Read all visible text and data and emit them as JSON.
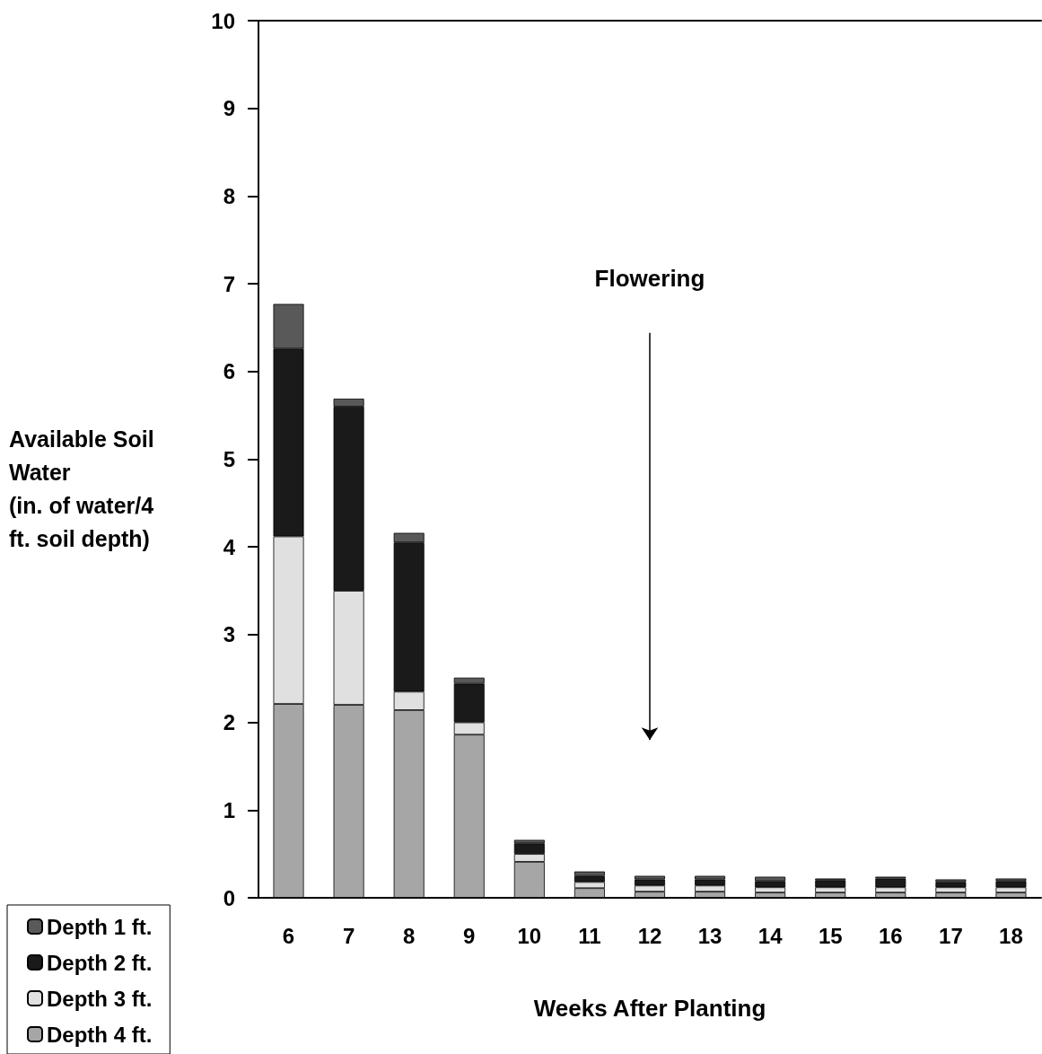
{
  "chart_data": {
    "type": "bar",
    "stacked": true,
    "xlabel": "Weeks After Planting",
    "ylabel": "Available Soil Water (in. of water/4 ft. soil depth)",
    "categories": [
      "6",
      "7",
      "8",
      "9",
      "10",
      "11",
      "12",
      "13",
      "14",
      "15",
      "16",
      "17",
      "18"
    ],
    "series": [
      {
        "name": "Depth 4 ft.",
        "color": "#a6a6a6",
        "values": [
          2.21,
          2.2,
          2.14,
          1.86,
          0.41,
          0.11,
          0.07,
          0.07,
          0.06,
          0.06,
          0.06,
          0.06,
          0.06
        ]
      },
      {
        "name": "Depth 3 ft.",
        "color": "#e0e0e0",
        "values": [
          1.91,
          1.3,
          0.21,
          0.14,
          0.09,
          0.07,
          0.07,
          0.07,
          0.06,
          0.06,
          0.06,
          0.06,
          0.06
        ]
      },
      {
        "name": "Depth 2 ft.",
        "color": "#1a1a1a",
        "values": [
          2.14,
          2.1,
          1.7,
          0.44,
          0.12,
          0.07,
          0.07,
          0.07,
          0.07,
          0.08,
          0.1,
          0.06,
          0.07
        ]
      },
      {
        "name": "Depth 1 ft.",
        "color": "#595959",
        "values": [
          0.51,
          0.09,
          0.11,
          0.07,
          0.04,
          0.05,
          0.04,
          0.04,
          0.05,
          0.02,
          0.02,
          0.03,
          0.03
        ]
      }
    ],
    "ylim": [
      0,
      10
    ],
    "yticks": [
      0,
      1,
      2,
      3,
      4,
      5,
      6,
      7,
      8,
      9,
      10
    ],
    "grid": false,
    "legend": "bottom left",
    "annotations": [
      "Flowering"
    ]
  }
}
